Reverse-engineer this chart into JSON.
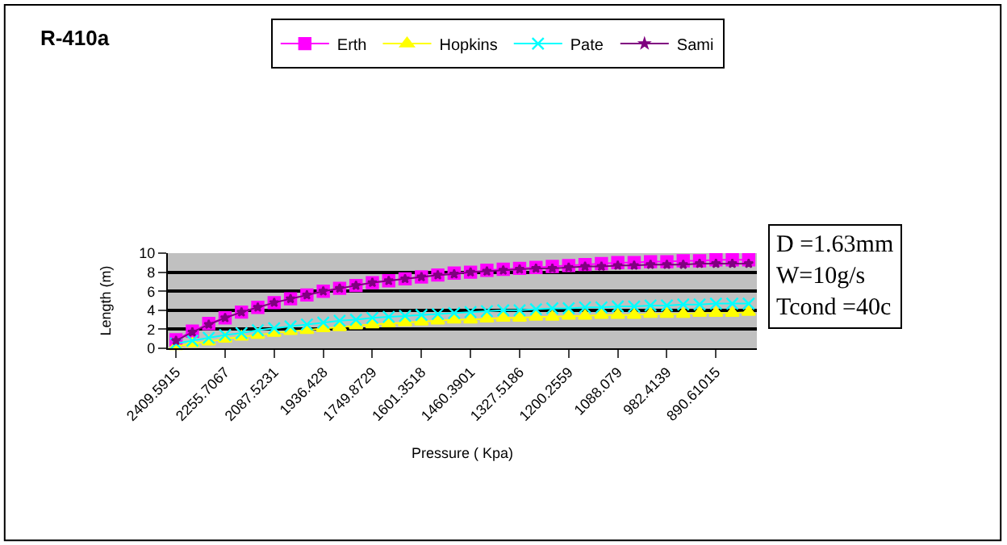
{
  "chart_data": {
    "type": "line",
    "title": "R-410a",
    "xlabel": "Pressure ( Kpa)",
    "ylabel": "Length (m)",
    "categories": [
      "2409.5915",
      null,
      null,
      "2255.7067",
      null,
      null,
      "2087.5231",
      null,
      null,
      "1936.428",
      null,
      null,
      "1749.8729",
      null,
      null,
      "1601.3518",
      null,
      null,
      "1460.3901",
      null,
      null,
      "1327.5186",
      null,
      null,
      "1200.2559",
      null,
      null,
      "1088.079",
      null,
      null,
      "982.4139",
      null,
      null,
      "890.61015",
      null,
      null
    ],
    "series": [
      {
        "name": "Erth",
        "color": "#ff00ff",
        "marker": "square",
        "values": [
          0.9,
          1.8,
          2.6,
          3.2,
          3.8,
          4.3,
          4.8,
          5.2,
          5.6,
          6.0,
          6.3,
          6.6,
          6.9,
          7.1,
          7.3,
          7.5,
          7.7,
          7.9,
          8.0,
          8.2,
          8.3,
          8.4,
          8.5,
          8.6,
          8.7,
          8.8,
          8.9,
          9.0,
          9.0,
          9.1,
          9.1,
          9.2,
          9.2,
          9.3,
          9.3,
          9.3
        ]
      },
      {
        "name": "Hopkins",
        "color": "#ffff00",
        "marker": "triangle",
        "values": [
          0.2,
          0.5,
          0.7,
          1.0,
          1.2,
          1.4,
          1.6,
          1.8,
          1.9,
          2.1,
          2.2,
          2.4,
          2.5,
          2.6,
          2.7,
          2.8,
          2.9,
          3.0,
          3.0,
          3.1,
          3.2,
          3.2,
          3.3,
          3.3,
          3.4,
          3.4,
          3.5,
          3.5,
          3.5,
          3.6,
          3.6,
          3.6,
          3.7,
          3.7,
          3.7,
          3.8
        ]
      },
      {
        "name": "Pate",
        "color": "#00ffff",
        "marker": "cross",
        "values": [
          0.5,
          0.8,
          1.1,
          1.4,
          1.6,
          1.9,
          2.1,
          2.3,
          2.5,
          2.7,
          2.9,
          3.0,
          3.2,
          3.3,
          3.4,
          3.5,
          3.6,
          3.7,
          3.8,
          3.9,
          4.0,
          4.0,
          4.1,
          4.2,
          4.2,
          4.3,
          4.3,
          4.4,
          4.4,
          4.5,
          4.5,
          4.6,
          4.6,
          4.7,
          4.7,
          4.7
        ]
      },
      {
        "name": "Sami",
        "color": "#800080",
        "marker": "star",
        "values": [
          0.8,
          1.7,
          2.5,
          3.2,
          3.8,
          4.3,
          4.8,
          5.2,
          5.6,
          6.0,
          6.3,
          6.6,
          6.9,
          7.1,
          7.3,
          7.5,
          7.7,
          7.8,
          8.0,
          8.1,
          8.2,
          8.3,
          8.4,
          8.4,
          8.5,
          8.6,
          8.6,
          8.7,
          8.7,
          8.8,
          8.8,
          8.8,
          8.9,
          8.9,
          8.9,
          8.9
        ]
      }
    ],
    "ylim": [
      0,
      10
    ],
    "yticks": [
      0,
      2,
      4,
      6,
      8,
      10
    ],
    "grid": "y",
    "legend": "top",
    "annotations": [
      "D =1.63mm\nW=10g/s\nTcond =40c"
    ]
  }
}
